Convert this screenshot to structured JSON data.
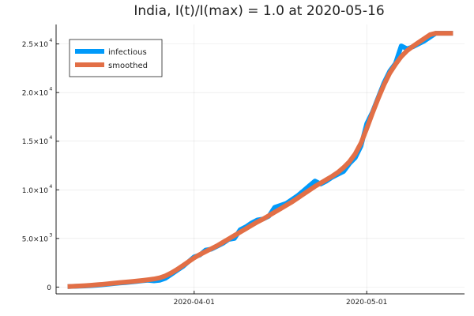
{
  "chart_data": {
    "type": "line",
    "title": "India,  I(t)/I(max) = 1.0 at 2020-05-16",
    "xlabel": "",
    "ylabel": "",
    "x_dates": [
      "2020-03-10",
      "2020-03-11",
      "2020-03-12",
      "2020-03-13",
      "2020-03-14",
      "2020-03-15",
      "2020-03-16",
      "2020-03-17",
      "2020-03-18",
      "2020-03-19",
      "2020-03-20",
      "2020-03-21",
      "2020-03-22",
      "2020-03-23",
      "2020-03-24",
      "2020-03-25",
      "2020-03-26",
      "2020-03-27",
      "2020-03-28",
      "2020-03-29",
      "2020-03-30",
      "2020-03-31",
      "2020-04-01",
      "2020-04-02",
      "2020-04-03",
      "2020-04-04",
      "2020-04-05",
      "2020-04-06",
      "2020-04-07",
      "2020-04-08",
      "2020-04-09",
      "2020-04-10",
      "2020-04-11",
      "2020-04-12",
      "2020-04-13",
      "2020-04-14",
      "2020-04-15",
      "2020-04-16",
      "2020-04-17",
      "2020-04-18",
      "2020-04-19",
      "2020-04-20",
      "2020-04-21",
      "2020-04-22",
      "2020-04-23",
      "2020-04-24",
      "2020-04-25",
      "2020-04-26",
      "2020-04-27",
      "2020-04-28",
      "2020-04-29",
      "2020-04-30",
      "2020-05-01",
      "2020-05-02",
      "2020-05-03",
      "2020-05-04",
      "2020-05-05",
      "2020-05-06",
      "2020-05-07",
      "2020-05-08",
      "2020-05-09",
      "2020-05-10",
      "2020-05-11",
      "2020-05-12",
      "2020-05-13",
      "2020-05-14",
      "2020-05-15",
      "2020-05-16"
    ],
    "series": [
      {
        "name": "infectious",
        "color": "#009AFA",
        "values": [
          50,
          70,
          90,
          110,
          140,
          180,
          230,
          290,
          350,
          420,
          460,
          520,
          580,
          650,
          700,
          640,
          700,
          900,
          1300,
          1700,
          2100,
          2600,
          3100,
          3300,
          3800,
          3900,
          4200,
          4500,
          4900,
          5000,
          5900,
          6200,
          6600,
          6900,
          7000,
          7300,
          8200,
          8400,
          8600,
          9000,
          9400,
          9900,
          10400,
          10900,
          10600,
          10900,
          11300,
          11600,
          11900,
          12700,
          13300,
          14500,
          16800,
          18000,
          19500,
          21000,
          22200,
          23000,
          24800,
          24500,
          24700,
          25000,
          25300,
          25700,
          26100,
          26100,
          26100,
          26100
        ]
      },
      {
        "name": "smoothed",
        "color": "#E26F46",
        "values": [
          50,
          80,
          110,
          140,
          180,
          230,
          280,
          340,
          400,
          460,
          510,
          560,
          620,
          680,
          750,
          830,
          950,
          1150,
          1450,
          1800,
          2200,
          2600,
          3000,
          3350,
          3650,
          3950,
          4250,
          4600,
          4950,
          5300,
          5650,
          6000,
          6350,
          6700,
          7000,
          7350,
          7700,
          8050,
          8400,
          8750,
          9150,
          9550,
          9950,
          10350,
          10700,
          11050,
          11400,
          11800,
          12300,
          12900,
          13700,
          14800,
          16300,
          17900,
          19400,
          20800,
          22000,
          22900,
          23700,
          24300,
          24750,
          25150,
          25550,
          25950,
          26100,
          26100,
          26100,
          26100
        ]
      }
    ],
    "x_ticks": [
      "2020-04-01",
      "2020-05-01"
    ],
    "y_ticks": [
      {
        "value": 0,
        "mant": "0",
        "exp": ""
      },
      {
        "value": 5000,
        "mant": "5.0×10",
        "exp": "3"
      },
      {
        "value": 10000,
        "mant": "1.0×10",
        "exp": "4"
      },
      {
        "value": 15000,
        "mant": "1.5×10",
        "exp": "4"
      },
      {
        "value": 20000,
        "mant": "2.0×10",
        "exp": "4"
      },
      {
        "value": 25000,
        "mant": "2.5×10",
        "exp": "4"
      }
    ],
    "xlim": [
      "2020-03-08",
      "2020-05-18"
    ],
    "ylim": [
      -700,
      27000
    ],
    "grid": true,
    "legend_position": "top-left"
  }
}
